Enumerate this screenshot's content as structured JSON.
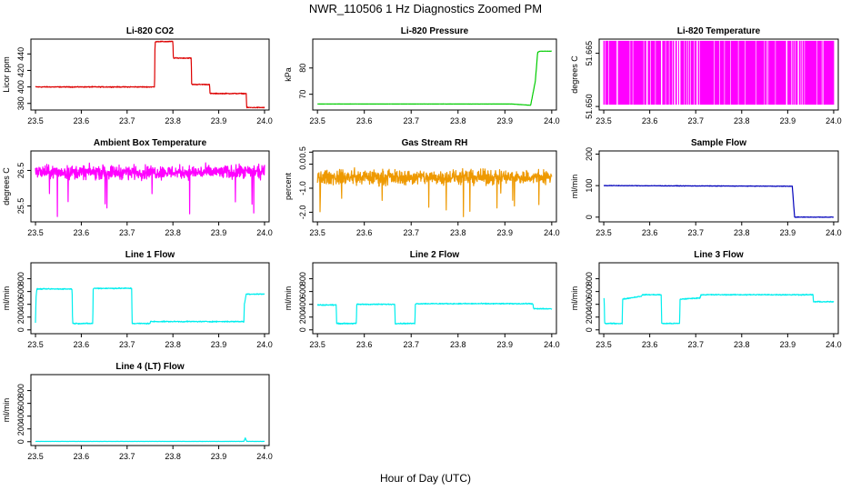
{
  "figure": {
    "title": "NWR_110506  1 Hz Diagnostics Zoomed PM",
    "xlabel": "Hour of Day (UTC)"
  },
  "chart_data": [
    {
      "type": "line",
      "title": "Li-820 CO2",
      "ylabel": "Licor ppm",
      "color": "#dd0000",
      "xlim": [
        23.49,
        24.01
      ],
      "ylim": [
        372,
        458
      ],
      "xticks": [
        "23.5",
        "23.6",
        "23.7",
        "23.8",
        "23.9",
        "24.0"
      ],
      "yticks": [
        "380",
        "400",
        "420",
        "440"
      ],
      "ytick_values": [
        380,
        400,
        420,
        440
      ],
      "noise": 0.8,
      "series": [
        {
          "x": [
            23.5,
            23.76,
            23.761,
            23.8,
            23.801,
            23.84,
            23.841,
            23.88,
            23.881,
            23.96,
            23.961,
            24.0
          ],
          "y": [
            400,
            400,
            455,
            455,
            435,
            435,
            403,
            403,
            392,
            392,
            375,
            375
          ]
        }
      ]
    },
    {
      "type": "line",
      "title": "Li-820 Pressure",
      "ylabel": "kPa",
      "color": "#00cc00",
      "xlim": [
        23.49,
        24.01
      ],
      "ylim": [
        64,
        91
      ],
      "xticks": [
        "23.5",
        "23.6",
        "23.7",
        "23.8",
        "23.9",
        "24.0"
      ],
      "yticks": [
        "70",
        "80"
      ],
      "ytick_values": [
        70,
        80
      ],
      "noise": 0.05,
      "series": [
        {
          "x": [
            23.5,
            23.915,
            23.955,
            23.965,
            23.97,
            23.975,
            24.0
          ],
          "y": [
            66.3,
            66.3,
            65.8,
            75,
            86,
            86.4,
            86.4
          ]
        }
      ]
    },
    {
      "type": "band",
      "title": "Li-820 Temperature",
      "ylabel": "degrees C",
      "color": "#ff00ff",
      "xlim": [
        23.49,
        24.01
      ],
      "ylim": [
        51.649,
        51.669
      ],
      "xticks": [
        "23.5",
        "23.6",
        "23.7",
        "23.8",
        "23.9",
        "24.0"
      ],
      "yticks": [
        "51.650",
        "51.665"
      ],
      "ytick_values": [
        51.65,
        51.665
      ],
      "band_low": 51.6505,
      "band_high": 51.6685,
      "series": [
        {
          "x": [
            23.5,
            24.0
          ],
          "y": [
            51.6505,
            51.6685
          ]
        }
      ]
    },
    {
      "type": "line",
      "title": "Ambient Box Temperature",
      "ylabel": "degrees C",
      "color": "#ff00ff",
      "xlim": [
        23.49,
        24.01
      ],
      "ylim": [
        25.05,
        27.05
      ],
      "xticks": [
        "23.5",
        "23.6",
        "23.7",
        "23.8",
        "23.9",
        "24.0"
      ],
      "yticks": [
        "25.5",
        "26.5"
      ],
      "ytick_values": [
        25.5,
        26.5
      ],
      "noise": 0.28,
      "series": [
        {
          "x": [
            23.5,
            24.0
          ],
          "y": [
            26.45,
            26.45
          ]
        }
      ]
    },
    {
      "type": "line",
      "title": "Gas Stream RH",
      "ylabel": "percent",
      "color": "#ee9900",
      "xlim": [
        23.49,
        24.01
      ],
      "ylim": [
        -2.4,
        0.55
      ],
      "xticks": [
        "23.5",
        "23.6",
        "23.7",
        "23.8",
        "23.9",
        "24.0"
      ],
      "yticks": [
        "-2.0",
        "-1.0",
        "0.0",
        "0.5"
      ],
      "ytick_values": [
        -2.0,
        -1.0,
        0.0,
        0.5
      ],
      "noise": 0.45,
      "series": [
        {
          "x": [
            23.5,
            24.0
          ],
          "y": [
            -0.55,
            -0.55
          ]
        }
      ]
    },
    {
      "type": "line",
      "title": "Sample Flow",
      "ylabel": "ml/min",
      "color": "#0000bb",
      "xlim": [
        23.49,
        24.01
      ],
      "ylim": [
        -15,
        210
      ],
      "xticks": [
        "23.5",
        "23.6",
        "23.7",
        "23.8",
        "23.9",
        "24.0"
      ],
      "yticks": [
        "0",
        "100",
        "200"
      ],
      "ytick_values": [
        0,
        100,
        200
      ],
      "noise": 1.2,
      "series": [
        {
          "x": [
            23.5,
            23.91,
            23.915,
            24.0
          ],
          "y": [
            100,
            98,
            0,
            0
          ]
        }
      ]
    },
    {
      "type": "line",
      "title": "Line 1 Flow",
      "ylabel": "ml/min",
      "color": "#00eeee",
      "xlim": [
        23.49,
        24.01
      ],
      "ylim": [
        -60,
        1050
      ],
      "xticks": [
        "23.5",
        "23.6",
        "23.7",
        "23.8",
        "23.9",
        "24.0"
      ],
      "yticks": [
        "0",
        "200",
        "400",
        "600",
        "800"
      ],
      "ytick_values": [
        0,
        200,
        400,
        600,
        800
      ],
      "noise": 12,
      "series": [
        {
          "x": [
            23.5,
            23.501,
            23.503,
            23.58,
            23.581,
            23.625,
            23.626,
            23.71,
            23.711,
            23.75,
            23.751,
            23.955,
            23.956,
            23.96,
            24.0
          ],
          "y": [
            100,
            500,
            640,
            640,
            100,
            100,
            650,
            650,
            100,
            100,
            130,
            130,
            400,
            560,
            560
          ]
        }
      ]
    },
    {
      "type": "line",
      "title": "Line 2 Flow",
      "ylabel": "ml/min",
      "color": "#00eeee",
      "xlim": [
        23.49,
        24.01
      ],
      "ylim": [
        -60,
        1050
      ],
      "xticks": [
        "23.5",
        "23.6",
        "23.7",
        "23.8",
        "23.9",
        "24.0"
      ],
      "yticks": [
        "0",
        "200",
        "400",
        "600",
        "800"
      ],
      "ytick_values": [
        0,
        200,
        400,
        600,
        800
      ],
      "noise": 12,
      "series": [
        {
          "x": [
            23.5,
            23.54,
            23.541,
            23.583,
            23.584,
            23.665,
            23.666,
            23.708,
            23.709,
            23.96,
            23.961,
            24.0
          ],
          "y": [
            390,
            390,
            100,
            100,
            400,
            400,
            100,
            100,
            410,
            410,
            330,
            330
          ]
        }
      ]
    },
    {
      "type": "line",
      "title": "Line 3 Flow",
      "ylabel": "ml/min",
      "color": "#00eeee",
      "xlim": [
        23.49,
        24.01
      ],
      "ylim": [
        -60,
        1050
      ],
      "xticks": [
        "23.5",
        "23.6",
        "23.7",
        "23.8",
        "23.9",
        "24.0"
      ],
      "yticks": [
        "0",
        "200",
        "400",
        "600",
        "800"
      ],
      "ytick_values": [
        0,
        200,
        400,
        600,
        800
      ],
      "noise": 12,
      "series": [
        {
          "x": [
            23.5,
            23.501,
            23.502,
            23.54,
            23.541,
            23.583,
            23.584,
            23.625,
            23.626,
            23.665,
            23.666,
            23.71,
            23.711,
            23.955,
            23.956,
            24.0
          ],
          "y": [
            480,
            480,
            100,
            100,
            480,
            530,
            550,
            550,
            100,
            100,
            480,
            500,
            550,
            550,
            440,
            440
          ]
        }
      ]
    },
    {
      "type": "line",
      "title": "Line 4 (LT) Flow",
      "ylabel": "ml/min",
      "color": "#00eeee",
      "xlim": [
        23.49,
        24.01
      ],
      "ylim": [
        -60,
        1050
      ],
      "xticks": [
        "23.5",
        "23.6",
        "23.7",
        "23.8",
        "23.9",
        "24.0"
      ],
      "yticks": [
        "0",
        "200",
        "400",
        "600",
        "800"
      ],
      "ytick_values": [
        0,
        200,
        400,
        600,
        800
      ],
      "noise": 2,
      "series": [
        {
          "x": [
            23.5,
            23.955,
            23.958,
            23.961,
            24.0
          ],
          "y": [
            5,
            5,
            60,
            5,
            5
          ]
        }
      ]
    }
  ]
}
